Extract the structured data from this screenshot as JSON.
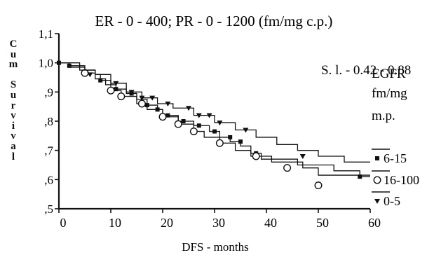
{
  "chart_data": {
    "type": "line",
    "subtype": "kaplan-meier survival curves",
    "title": "ER - 0 - 400;  PR - 0 - 1200 (fm/mg c.p.)",
    "xlabel": "DFS  -  months",
    "ylabel": "Cum Survival",
    "xlim": [
      0,
      60
    ],
    "ylim": [
      0.5,
      1.1
    ],
    "x_ticks": [
      0,
      10,
      20,
      30,
      40,
      50,
      60
    ],
    "x_tick_labels": [
      "0",
      "10",
      "20",
      "30",
      "40",
      "50",
      "60"
    ],
    "y_ticks": [
      0.5,
      0.6,
      0.7,
      0.8,
      0.9,
      1.0,
      1.1
    ],
    "y_tick_labels": [
      ",5",
      ",6",
      ",7",
      ",8",
      ",9",
      "1,0",
      "1,1"
    ],
    "annotation": "S. l.  -  0.42 - 0.88",
    "legend": {
      "title_lines": [
        "EGFR",
        "fm/mg",
        "m.p."
      ],
      "placement": "right"
    },
    "grid": false,
    "series": [
      {
        "name": "6-15",
        "marker": "filled-square",
        "steps": [
          [
            0,
            1.0
          ],
          [
            2,
            0.99
          ],
          [
            5,
            0.975
          ],
          [
            7,
            0.96
          ],
          [
            8,
            0.94
          ],
          [
            10,
            0.925
          ],
          [
            11,
            0.91
          ],
          [
            13,
            0.895
          ],
          [
            15,
            0.875
          ],
          [
            17,
            0.855
          ],
          [
            19,
            0.84
          ],
          [
            20,
            0.82
          ],
          [
            23,
            0.8
          ],
          [
            26,
            0.785
          ],
          [
            29,
            0.765
          ],
          [
            31,
            0.745
          ],
          [
            33,
            0.73
          ],
          [
            35,
            0.715
          ],
          [
            37,
            0.69
          ],
          [
            39,
            0.67
          ],
          [
            46,
            0.65
          ],
          [
            53,
            0.63
          ],
          [
            58,
            0.61
          ],
          [
            60,
            0.61
          ]
        ],
        "censored": [
          [
            0,
            1.0
          ],
          [
            2,
            0.99
          ],
          [
            8,
            0.94
          ],
          [
            11,
            0.91
          ],
          [
            14,
            0.895
          ],
          [
            17,
            0.855
          ],
          [
            19,
            0.84
          ],
          [
            21,
            0.82
          ],
          [
            24,
            0.8
          ],
          [
            27,
            0.785
          ],
          [
            30,
            0.765
          ],
          [
            33,
            0.745
          ],
          [
            35,
            0.73
          ],
          [
            38,
            0.69
          ],
          [
            58,
            0.61
          ]
        ]
      },
      {
        "name": "16-100",
        "marker": "open-circle",
        "steps": [
          [
            0,
            1.0
          ],
          [
            2,
            0.985
          ],
          [
            5,
            0.965
          ],
          [
            7,
            0.945
          ],
          [
            9,
            0.925
          ],
          [
            10,
            0.905
          ],
          [
            12,
            0.885
          ],
          [
            15,
            0.86
          ],
          [
            17,
            0.84
          ],
          [
            20,
            0.815
          ],
          [
            23,
            0.79
          ],
          [
            26,
            0.765
          ],
          [
            28,
            0.745
          ],
          [
            31,
            0.725
          ],
          [
            34,
            0.7
          ],
          [
            37,
            0.68
          ],
          [
            41,
            0.66
          ],
          [
            47,
            0.64
          ],
          [
            50,
            0.615
          ],
          [
            60,
            0.615
          ]
        ],
        "censored": [
          [
            5,
            0.965
          ],
          [
            10,
            0.905
          ],
          [
            12,
            0.885
          ],
          [
            16,
            0.86
          ],
          [
            20,
            0.815
          ],
          [
            23,
            0.79
          ],
          [
            26,
            0.765
          ],
          [
            31,
            0.725
          ],
          [
            38,
            0.68
          ],
          [
            44,
            0.64
          ],
          [
            50,
            0.58
          ]
        ]
      },
      {
        "name": "0-5",
        "marker": "filled-triangle-down",
        "steps": [
          [
            0,
            1.0
          ],
          [
            4,
            0.975
          ],
          [
            7,
            0.96
          ],
          [
            10,
            0.93
          ],
          [
            13,
            0.9
          ],
          [
            16,
            0.88
          ],
          [
            19,
            0.86
          ],
          [
            22,
            0.845
          ],
          [
            26,
            0.82
          ],
          [
            30,
            0.795
          ],
          [
            34,
            0.77
          ],
          [
            38,
            0.745
          ],
          [
            42,
            0.72
          ],
          [
            46,
            0.7
          ],
          [
            50,
            0.68
          ],
          [
            55,
            0.66
          ],
          [
            60,
            0.66
          ]
        ],
        "censored": [
          [
            6,
            0.96
          ],
          [
            11,
            0.93
          ],
          [
            14,
            0.9
          ],
          [
            16,
            0.88
          ],
          [
            18,
            0.88
          ],
          [
            21,
            0.86
          ],
          [
            25,
            0.845
          ],
          [
            27,
            0.82
          ],
          [
            29,
            0.82
          ],
          [
            31,
            0.795
          ],
          [
            36,
            0.77
          ],
          [
            47,
            0.68
          ]
        ]
      }
    ]
  }
}
